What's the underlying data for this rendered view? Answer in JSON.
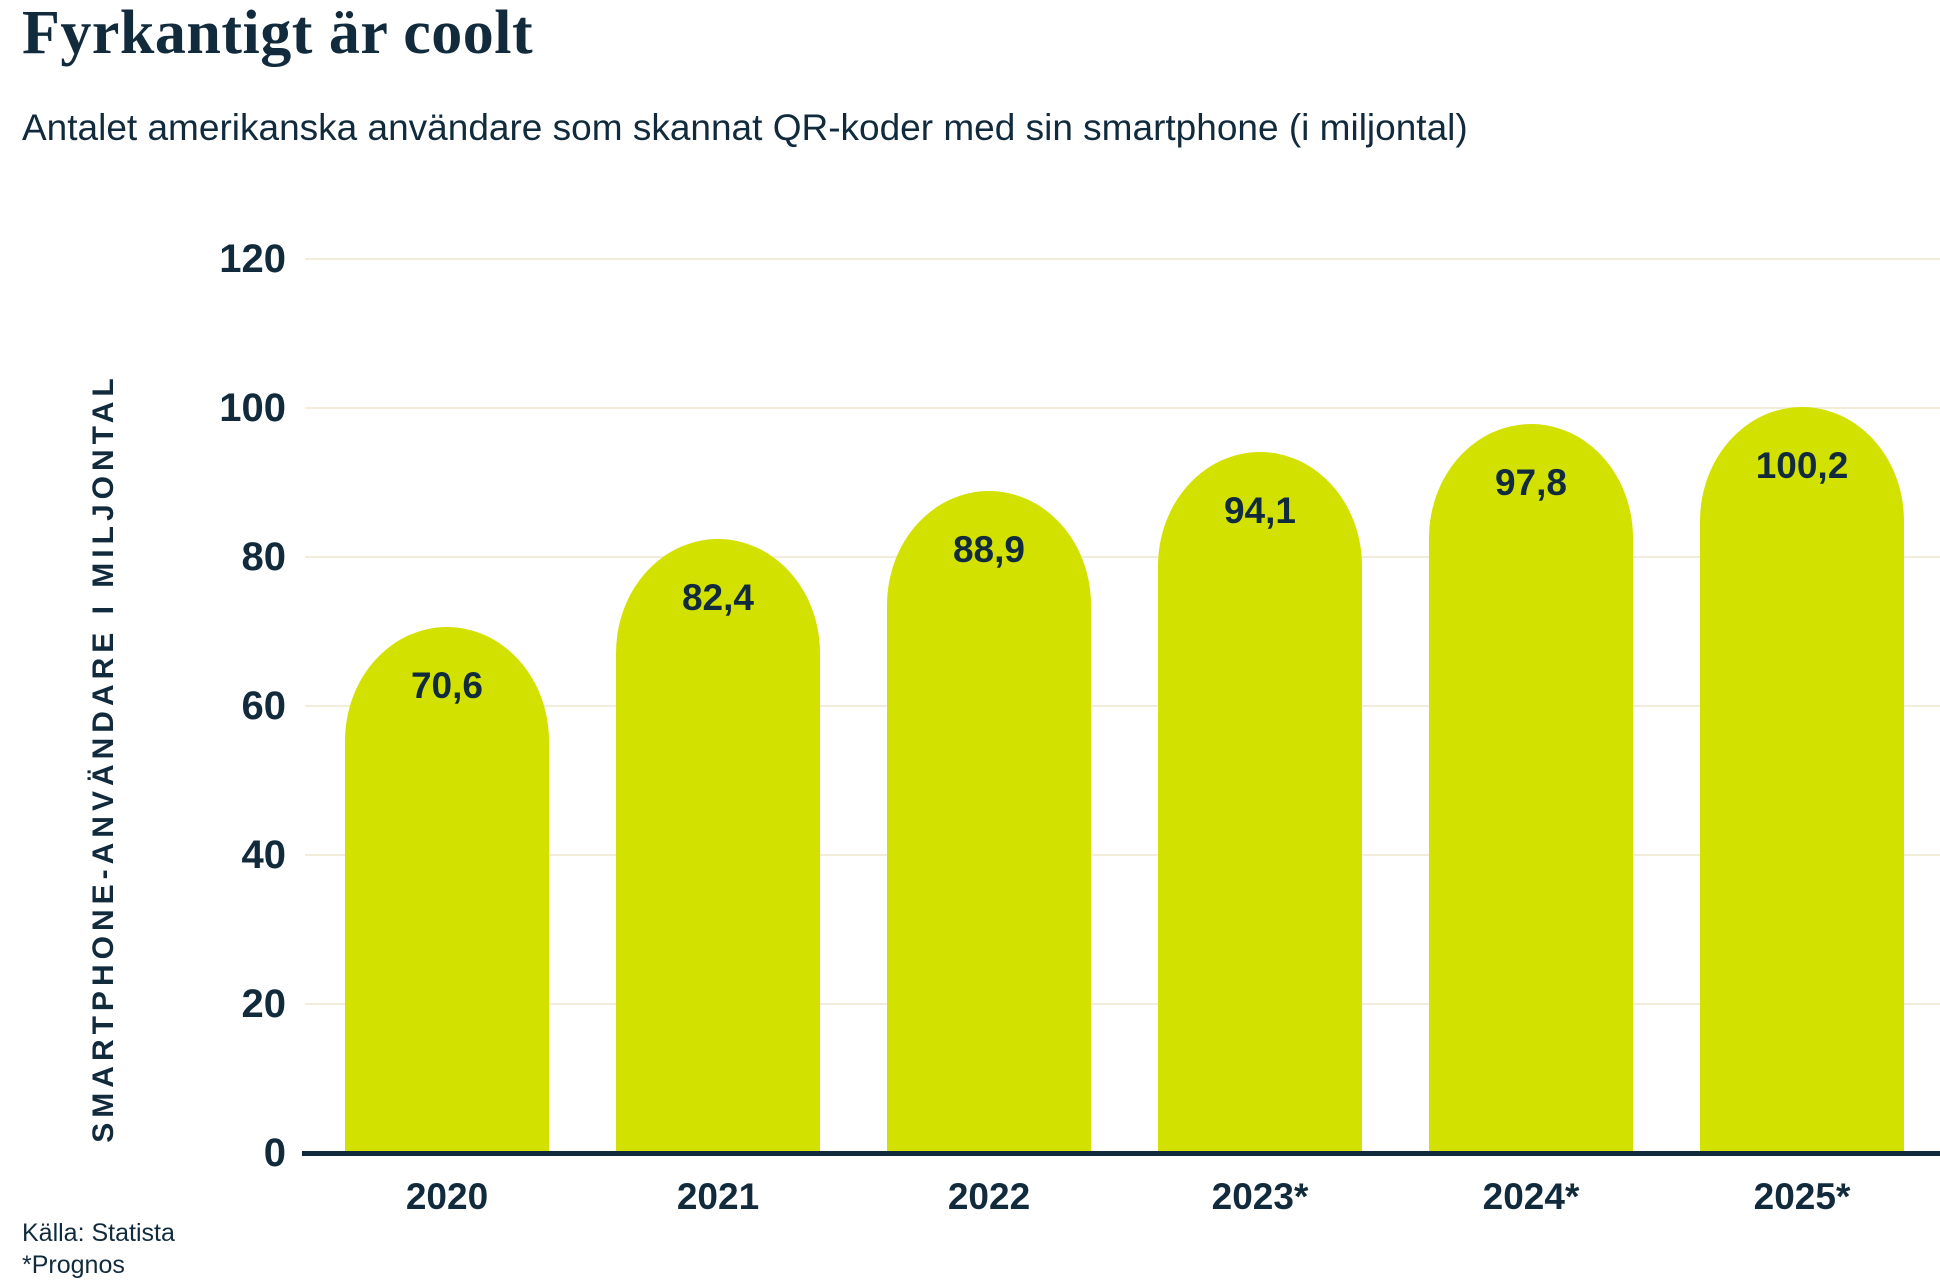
{
  "chart_data": {
    "type": "bar",
    "title": "Fyrkantigt är coolt",
    "subtitle": "Antalet amerikanska användare som skannat QR-koder med sin smartphone (i miljontal)",
    "categories": [
      "2020",
      "2021",
      "2022",
      "2023*",
      "2024*",
      "2025*"
    ],
    "values": [
      70.6,
      82.4,
      88.9,
      94.1,
      97.8,
      100.2
    ],
    "value_labels": [
      "70,6",
      "82,4",
      "88,9",
      "94,1",
      "97,8",
      "100,2"
    ],
    "xlabel": "",
    "ylabel": "SMARTPHONE-ANVÄNDARE I MILJONTAL",
    "ylim": [
      0,
      120
    ],
    "yticks": [
      0,
      20,
      40,
      60,
      80,
      100,
      120
    ],
    "grid": "horizontal",
    "legend": "none",
    "source": "Källa: Statista",
    "footnote": "*Prognos",
    "colors": {
      "bar": "#d3e100",
      "text": "#112b3d",
      "gridline": "#f2edda",
      "axis": "#112b3d",
      "background": "#ffffff"
    }
  }
}
